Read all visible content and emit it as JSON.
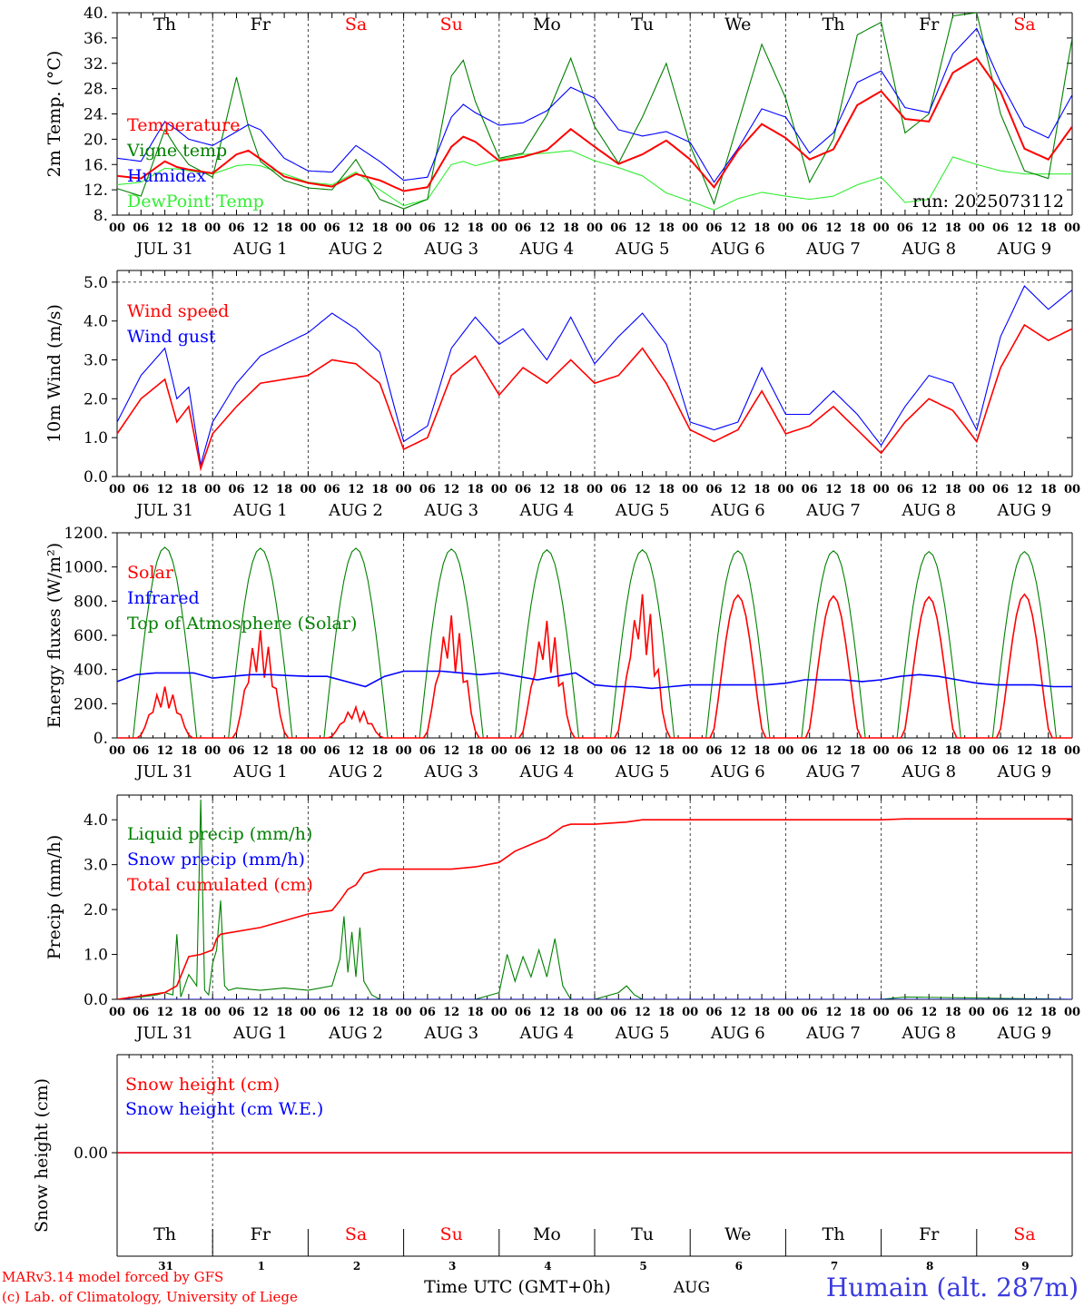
{
  "colors": {
    "red": "#ff0000",
    "blue": "#0000ff",
    "green": "#008000",
    "lightgreen": "#33ee33",
    "black": "#000000"
  },
  "weekdays": [
    {
      "label": "Th",
      "color": "#000000"
    },
    {
      "label": "Fr",
      "color": "#000000"
    },
    {
      "label": "Sa",
      "color": "#ff0000"
    },
    {
      "label": "Su",
      "color": "#ff0000"
    },
    {
      "label": "Mo",
      "color": "#000000"
    },
    {
      "label": "Tu",
      "color": "#000000"
    },
    {
      "label": "We",
      "color": "#000000"
    },
    {
      "label": "Th",
      "color": "#000000"
    },
    {
      "label": "Fr",
      "color": "#000000"
    },
    {
      "label": "Sa",
      "color": "#ff0000"
    }
  ],
  "hour_ticks": [
    "00",
    "06",
    "12",
    "18"
  ],
  "final_hour_tick": "00",
  "date_labels": [
    "JUL 31",
    "AUG  1",
    "AUG  2",
    "AUG  3",
    "AUG  4",
    "AUG  5",
    "AUG  6",
    "AUG  7",
    "AUG  8",
    "AUG  9"
  ],
  "bottom_day_numbers": [
    "31",
    "1",
    "2",
    "3",
    "4",
    "5",
    "6",
    "7",
    "8",
    "9"
  ],
  "footer": {
    "model": "MARv3.14 model forced by GFS",
    "credit": "(c) Lab. of Climatology, University of Liege",
    "axis_title": "Time UTC (GMT+0h)",
    "month": "AUG",
    "station": "Humain (alt. 287m)"
  },
  "chart_data": [
    {
      "type": "line",
      "ylabel": "2m Temp. (°C)",
      "ylim": [
        8,
        40
      ],
      "yticks": [
        "8.",
        "12.",
        "16.",
        "20.",
        "24.",
        "28.",
        "32.",
        "36.",
        "40."
      ],
      "x_hours": [
        0,
        6,
        12,
        15,
        18,
        24,
        30,
        33,
        36,
        42,
        48,
        54,
        60,
        66,
        72,
        78,
        84,
        87,
        90,
        96,
        102,
        108,
        114,
        120,
        126,
        132,
        138,
        144,
        150,
        156,
        162,
        168,
        174,
        180,
        186,
        192,
        198,
        204,
        210,
        216,
        222,
        228,
        234,
        240
      ],
      "annotation": "run: 2025073112",
      "legend_position": "top-left",
      "series": [
        {
          "name": "Temperature",
          "color": "#ff0000",
          "values": [
            14.2,
            13.8,
            16.5,
            15.6,
            15.2,
            14.6,
            17.6,
            18.2,
            16.9,
            14.1,
            13.1,
            12.5,
            14.5,
            13.5,
            11.8,
            12.4,
            18.8,
            20.4,
            19.6,
            16.6,
            17.2,
            18.3,
            21.6,
            18.8,
            16.1,
            17.6,
            19.8,
            16.8,
            12.4,
            18.2,
            22.4,
            20.2,
            16.8,
            18.4,
            25.4,
            27.6,
            23.2,
            22.8,
            30.5,
            32.8,
            27.5,
            18.5,
            16.8,
            22.0
          ]
        },
        {
          "name": "Vigne temp",
          "color": "#008000",
          "values": [
            12.2,
            11.0,
            21.5,
            18.5,
            16.0,
            14.0,
            29.8,
            22.0,
            16.5,
            13.5,
            12.3,
            12.0,
            16.8,
            10.5,
            9.0,
            10.5,
            30.0,
            32.5,
            26.0,
            17.0,
            17.8,
            23.8,
            32.8,
            22.0,
            16.2,
            23.5,
            32.0,
            19.0,
            9.8,
            22.5,
            35.0,
            26.5,
            13.2,
            20.0,
            36.5,
            38.5,
            21.0,
            24.0,
            39.5,
            40.0,
            24.0,
            15.0,
            13.8,
            36.0
          ]
        },
        {
          "name": "Humidex",
          "color": "#0000ff",
          "values": [
            17.0,
            16.5,
            22.8,
            21.5,
            20.0,
            19.0,
            21.2,
            22.3,
            21.5,
            17.0,
            15.0,
            14.8,
            19.0,
            16.5,
            13.5,
            14.0,
            23.5,
            25.5,
            24.2,
            22.2,
            22.6,
            24.5,
            28.2,
            26.5,
            21.5,
            20.5,
            21.2,
            19.5,
            13.2,
            18.5,
            24.8,
            23.5,
            17.8,
            21.0,
            29.0,
            30.8,
            25.0,
            24.2,
            33.5,
            37.5,
            29.0,
            22.0,
            20.2,
            27.0
          ]
        },
        {
          "name": "DewPoint Temp",
          "color": "#33ee33",
          "values": [
            12.8,
            13.2,
            15.4,
            15.3,
            15.0,
            14.5,
            15.8,
            16.0,
            15.8,
            14.5,
            13.2,
            12.8,
            14.8,
            12.0,
            9.5,
            10.5,
            16.0,
            16.5,
            15.8,
            16.8,
            17.6,
            17.8,
            18.2,
            16.6,
            15.5,
            14.2,
            11.5,
            10.2,
            8.8,
            10.6,
            11.6,
            11.0,
            10.5,
            11.0,
            12.8,
            14.0,
            10.0,
            10.5,
            17.2,
            16.0,
            15.0,
            14.5,
            14.5,
            14.5
          ]
        }
      ]
    },
    {
      "type": "line",
      "ylabel": "10m Wind (m/s)",
      "ylim": [
        0,
        5.3
      ],
      "yticks": [
        "0.0",
        "1.0",
        "2.0",
        "3.0",
        "4.0",
        "5.0"
      ],
      "reference_line": 5.0,
      "x_hours": [
        0,
        6,
        12,
        15,
        18,
        21,
        24,
        30,
        36,
        42,
        48,
        54,
        60,
        66,
        72,
        78,
        84,
        90,
        96,
        102,
        108,
        114,
        120,
        126,
        132,
        138,
        144,
        150,
        156,
        162,
        168,
        174,
        180,
        186,
        192,
        198,
        204,
        210,
        216,
        222,
        228,
        234,
        240
      ],
      "legend_position": "top-left",
      "series": [
        {
          "name": "Wind speed",
          "color": "#ff0000",
          "values": [
            1.1,
            2.0,
            2.5,
            1.4,
            1.8,
            0.2,
            1.1,
            1.8,
            2.4,
            2.5,
            2.6,
            3.0,
            2.9,
            2.4,
            0.7,
            1.0,
            2.6,
            3.1,
            2.1,
            2.8,
            2.4,
            3.0,
            2.4,
            2.6,
            3.3,
            2.4,
            1.2,
            0.9,
            1.2,
            2.2,
            1.1,
            1.3,
            1.8,
            1.2,
            0.6,
            1.4,
            2.0,
            1.7,
            0.9,
            2.8,
            3.9,
            3.5,
            3.8
          ]
        },
        {
          "name": "Wind gust",
          "color": "#0000ff",
          "values": [
            1.4,
            2.6,
            3.3,
            2.0,
            2.3,
            0.3,
            1.4,
            2.4,
            3.1,
            3.4,
            3.7,
            4.2,
            3.8,
            3.2,
            0.9,
            1.3,
            3.3,
            4.1,
            3.4,
            3.8,
            3.0,
            4.1,
            2.9,
            3.6,
            4.2,
            3.4,
            1.4,
            1.2,
            1.4,
            2.8,
            1.6,
            1.6,
            2.2,
            1.6,
            0.8,
            1.8,
            2.6,
            2.4,
            1.2,
            3.6,
            4.9,
            4.3,
            4.8
          ]
        }
      ]
    },
    {
      "type": "line",
      "ylabel": "Energy fluxes (W/m²)",
      "ylim": [
        0,
        1200
      ],
      "yticks": [
        "0.",
        "200.",
        "400.",
        "600.",
        "800.",
        "1000.",
        "1200."
      ],
      "legend_position": "top-left",
      "toa_peak": [
        1115,
        1110,
        1110,
        1105,
        1100,
        1100,
        1095,
        1095,
        1090,
        1090
      ],
      "solar_peak": [
        300,
        630,
        180,
        720,
        690,
        850,
        835,
        830,
        825,
        840
      ],
      "infrared_hourly_6h": [
        330,
        370,
        380,
        380,
        380,
        350,
        360,
        370,
        370,
        365,
        360,
        360,
        330,
        300,
        360,
        390,
        390,
        390,
        380,
        370,
        380,
        360,
        340,
        360,
        380,
        310,
        300,
        300,
        290,
        300,
        310,
        310,
        310,
        310,
        310,
        320,
        340,
        340,
        340,
        330,
        340,
        360,
        370,
        360,
        340,
        320,
        310,
        310,
        310,
        300,
        300
      ],
      "series": [
        {
          "name": "Solar",
          "color": "#ff0000"
        },
        {
          "name": "Infrared",
          "color": "#0000ff"
        },
        {
          "name": "Top of Atmosphere (Solar)",
          "color": "#008000"
        }
      ]
    },
    {
      "type": "line",
      "ylabel": "Precip (mm/h)",
      "ylim": [
        0,
        4.55
      ],
      "yticks": [
        "0.0",
        "1.0",
        "2.0",
        "3.0",
        "4.0"
      ],
      "legend_position": "top-left",
      "series": [
        {
          "name": "Liquid precip (mm/h)",
          "color": "#008000",
          "x_hours": [
            0,
            6,
            10,
            12,
            14,
            15,
            16,
            18,
            20,
            21,
            22,
            23,
            24,
            25,
            26,
            27,
            28,
            30,
            36,
            42,
            48,
            54,
            56,
            57,
            58,
            59,
            60,
            61,
            62,
            64,
            66,
            72,
            90,
            96,
            98,
            100,
            102,
            104,
            106,
            108,
            110,
            112,
            114,
            120,
            126,
            128,
            130,
            132,
            192,
            198,
            240
          ],
          "values": [
            0.0,
            0.05,
            0.1,
            0.15,
            0.1,
            1.45,
            0.05,
            0.55,
            0.3,
            4.45,
            0.2,
            0.1,
            0.8,
            1.1,
            2.2,
            0.3,
            0.2,
            0.25,
            0.2,
            0.25,
            0.2,
            0.3,
            0.9,
            1.85,
            0.6,
            1.5,
            0.5,
            1.6,
            0.4,
            0.1,
            0.0,
            0.0,
            0.0,
            0.15,
            1.0,
            0.4,
            0.95,
            0.5,
            1.1,
            0.5,
            1.35,
            0.3,
            0.0,
            0.0,
            0.15,
            0.3,
            0.1,
            0.0,
            0.0,
            0.05,
            0.0
          ]
        },
        {
          "name": "Snow precip (mm/h)",
          "color": "#0000ff",
          "x_hours": [
            0,
            240
          ],
          "values": [
            0,
            0
          ]
        },
        {
          "name": "Total cumulated (cm)",
          "color": "#ff0000",
          "x_hours": [
            0,
            12,
            15,
            18,
            21,
            24,
            25,
            26,
            28,
            36,
            42,
            48,
            54,
            56,
            58,
            60,
            62,
            66,
            72,
            84,
            90,
            96,
            100,
            104,
            108,
            112,
            114,
            120,
            128,
            132,
            168,
            192,
            198,
            240
          ],
          "values": [
            0.0,
            0.15,
            0.3,
            0.95,
            1.0,
            1.1,
            1.35,
            1.45,
            1.48,
            1.6,
            1.75,
            1.9,
            1.98,
            2.2,
            2.45,
            2.55,
            2.8,
            2.9,
            2.9,
            2.9,
            2.95,
            3.05,
            3.3,
            3.45,
            3.6,
            3.85,
            3.9,
            3.9,
            3.95,
            4.0,
            4.0,
            4.0,
            4.02,
            4.02
          ]
        }
      ]
    },
    {
      "type": "line",
      "ylabel": "Snow height (cm)",
      "yticks": [
        "0.00"
      ],
      "legend_position": "top-left",
      "series": [
        {
          "name": "Snow height (cm)",
          "color": "#ff0000",
          "x_hours": [
            0,
            240
          ],
          "values": [
            0,
            0
          ]
        },
        {
          "name": "Snow height (cm W.E.)",
          "color": "#0000ff",
          "x_hours": [
            0,
            240
          ],
          "values": [
            0,
            0
          ]
        }
      ]
    }
  ]
}
